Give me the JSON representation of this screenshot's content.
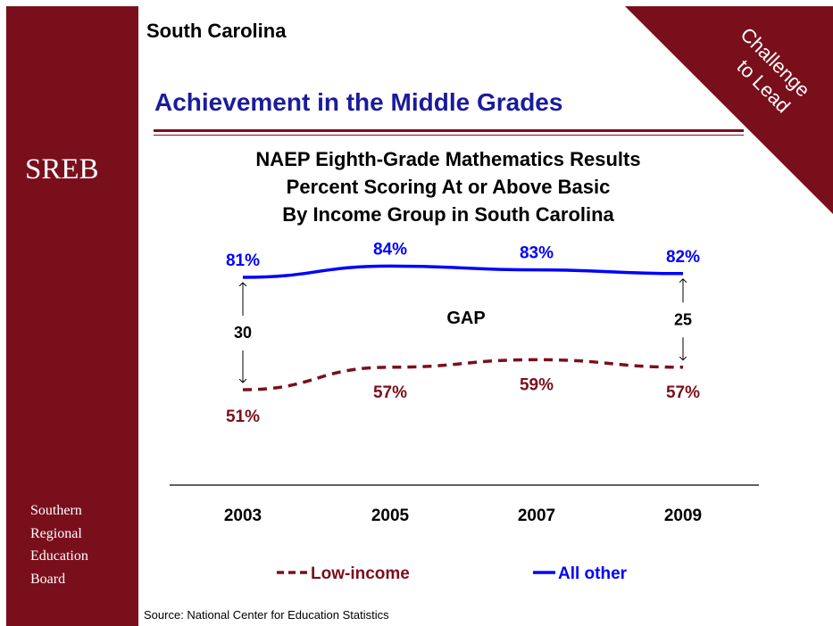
{
  "header": {
    "state": "South Carolina",
    "section_title": "Achievement in the Middle Grades",
    "corner_badge_line1": "Challenge",
    "corner_badge_line2": "to Lead"
  },
  "sidebar": {
    "logo": "SREB",
    "org_lines": [
      "Southern",
      "Regional",
      "Education",
      "Board"
    ]
  },
  "colors": {
    "sidebar": "#7a0f1c",
    "title_blue": "#1b1b9c",
    "all_other": "#0000ff",
    "low_income": "#7a0f1c"
  },
  "chart_data": {
    "type": "line",
    "title_lines": [
      "NAEP Eighth-Grade Mathematics Results",
      "Percent Scoring At or Above Basic",
      "By Income Group in South Carolina"
    ],
    "categories": [
      "2003",
      "2005",
      "2007",
      "2009"
    ],
    "series": [
      {
        "name": "All other",
        "values": [
          81,
          84,
          83,
          82
        ],
        "labels": [
          "81%",
          "84%",
          "83%",
          "82%"
        ],
        "style": "solid",
        "color": "#0000ff"
      },
      {
        "name": "Low-income",
        "values": [
          51,
          57,
          59,
          57
        ],
        "labels": [
          "51%",
          "57%",
          "59%",
          "57%"
        ],
        "style": "dashed",
        "color": "#7a0f1c"
      }
    ],
    "gap_label": "GAP",
    "gaps": [
      {
        "category": "2003",
        "value": "30"
      },
      {
        "category": "2009",
        "value": "25"
      }
    ],
    "legend": [
      {
        "label": "Low-income",
        "style": "dashed"
      },
      {
        "label": "All other",
        "style": "solid"
      }
    ],
    "legend_position": "bottom"
  },
  "footer": {
    "source": "Source: National Center for Education Statistics"
  }
}
